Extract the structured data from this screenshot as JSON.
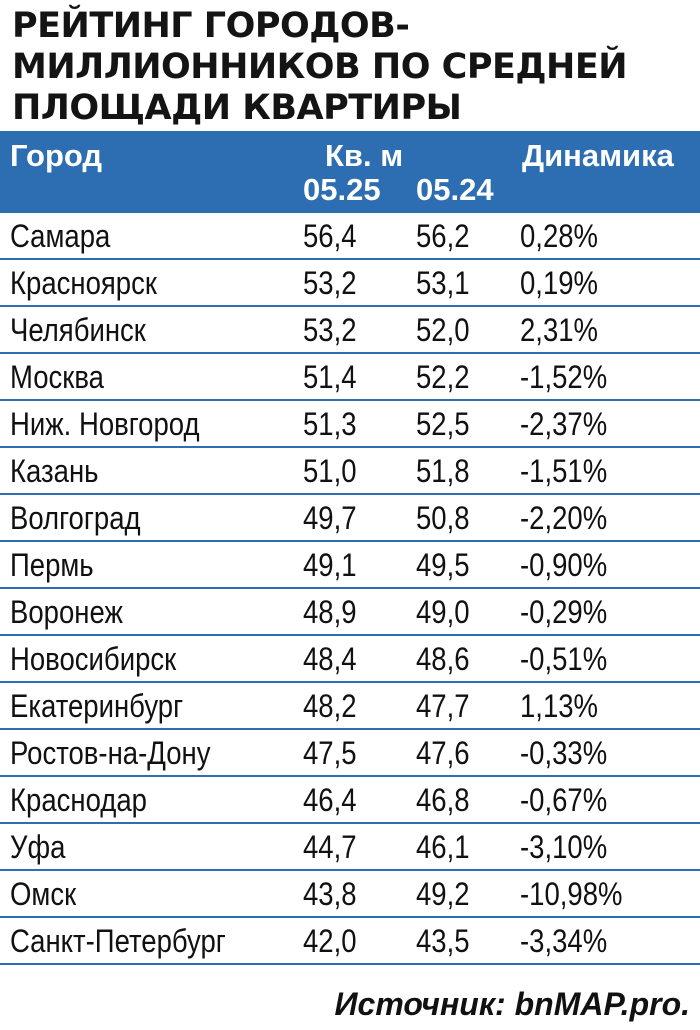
{
  "title_lines": [
    "РЕЙТИНГ ГОРОДОВ-",
    "МИЛЛИОННИКОВ ПО СРЕДНЕЙ",
    "ПЛОЩАДИ КВАРТИРЫ"
  ],
  "header": {
    "city": "Город",
    "sqm": "Кв. м",
    "col_2025": "05.25",
    "col_2024": "05.24",
    "dynamics": "Динамика"
  },
  "colors": {
    "header_bg": "#2d6eb2",
    "header_text": "#ffffff",
    "row_divider": "#2d6eb2"
  },
  "chart_data": {
    "type": "table",
    "columns": [
      "Город",
      "05.25",
      "05.24",
      "Динамика"
    ],
    "rows": [
      [
        "Самара",
        "56,4",
        "56,2",
        "0,28%"
      ],
      [
        "Красноярск",
        "53,2",
        "53,1",
        "0,19%"
      ],
      [
        "Челябинск",
        "53,2",
        "52,0",
        "2,31%"
      ],
      [
        "Москва",
        "51,4",
        "52,2",
        "-1,52%"
      ],
      [
        "Ниж. Новгород",
        "51,3",
        "52,5",
        "-2,37%"
      ],
      [
        "Казань",
        "51,0",
        "51,8",
        "-1,51%"
      ],
      [
        "Волгоград",
        "49,7",
        "50,8",
        "-2,20%"
      ],
      [
        "Пермь",
        "49,1",
        "49,5",
        "-0,90%"
      ],
      [
        "Воронеж",
        "48,9",
        "49,0",
        "-0,29%"
      ],
      [
        "Новосибирск",
        "48,4",
        "48,6",
        "-0,51%"
      ],
      [
        "Екатеринбург",
        "48,2",
        "47,7",
        "1,13%"
      ],
      [
        "Ростов-на-Дону",
        "47,5",
        "47,6",
        "-0,33%"
      ],
      [
        "Краснодар",
        "46,4",
        "46,8",
        "-0,67%"
      ],
      [
        "Уфа",
        "44,7",
        "46,1",
        "-3,10%"
      ],
      [
        "Омск",
        "43,8",
        "49,2",
        " -10,98%"
      ],
      [
        "Санкт-Петербург",
        "42,0",
        "43,5",
        "-3,34%"
      ]
    ]
  },
  "source": "Источник: bnMAP.pro."
}
